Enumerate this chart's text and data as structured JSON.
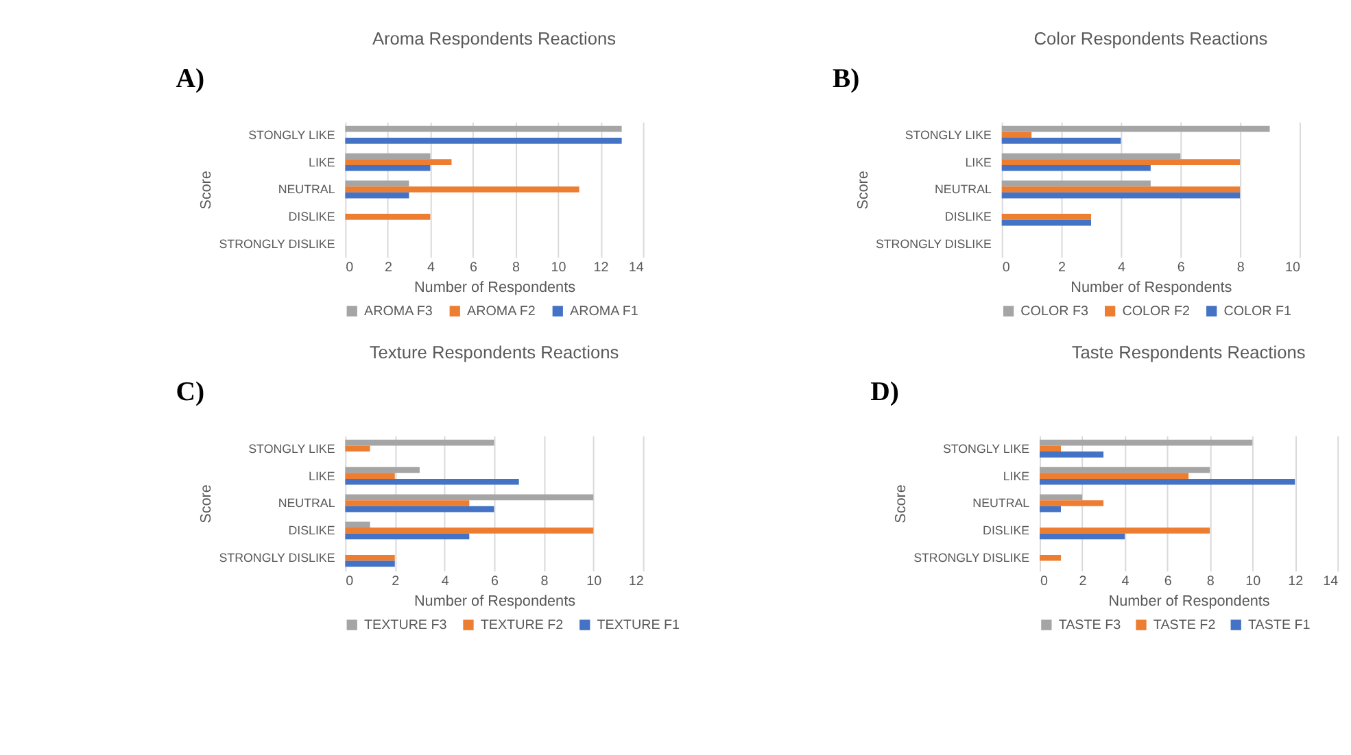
{
  "chart_data": [
    {
      "type": "bar",
      "orientation": "horizontal",
      "title": "Aroma Respondents Reactions",
      "xlabel": "Number of Respondents",
      "ylabel": "Score",
      "annotations": [
        "A)"
      ],
      "categories": [
        "STONGLY LIKE",
        "LIKE",
        "NEUTRAL",
        "DISLIKE",
        "STRONGLY DISLIKE"
      ],
      "xlim": [
        0,
        14
      ],
      "xticks": [
        0,
        2,
        4,
        6,
        8,
        10,
        12,
        14
      ],
      "grid": "x",
      "legend": "bottom",
      "series": [
        {
          "name": "AROMA F3",
          "color": "#a5a5a5",
          "values": [
            13,
            4,
            3,
            0,
            0
          ]
        },
        {
          "name": "AROMA F2",
          "color": "#ed7d31",
          "values": [
            0,
            5,
            11,
            4,
            0
          ]
        },
        {
          "name": "AROMA F1",
          "color": "#4472c4",
          "values": [
            13,
            4,
            3,
            0,
            0
          ]
        }
      ]
    },
    {
      "type": "bar",
      "orientation": "horizontal",
      "title": "Color Respondents Reactions",
      "xlabel": "Number of Respondents",
      "ylabel": "Score",
      "annotations": [
        "B)"
      ],
      "categories": [
        "STONGLY LIKE",
        "LIKE",
        "NEUTRAL",
        "DISLIKE",
        "STRONGLY DISLIKE"
      ],
      "xlim": [
        0,
        10
      ],
      "xticks": [
        0,
        2,
        4,
        6,
        8,
        10
      ],
      "grid": "x",
      "legend": "bottom",
      "series": [
        {
          "name": "COLOR F3",
          "color": "#a5a5a5",
          "values": [
            9,
            6,
            5,
            0,
            0
          ]
        },
        {
          "name": "COLOR F2",
          "color": "#ed7d31",
          "values": [
            1,
            8,
            8,
            3,
            0
          ]
        },
        {
          "name": "COLOR F1",
          "color": "#4472c4",
          "values": [
            4,
            5,
            8,
            3,
            0
          ]
        }
      ]
    },
    {
      "type": "bar",
      "orientation": "horizontal",
      "title": "Texture Respondents Reactions",
      "xlabel": "Number of Respondents",
      "ylabel": "Score",
      "annotations": [
        "C)"
      ],
      "categories": [
        "STONGLY LIKE",
        "LIKE",
        "NEUTRAL",
        "DISLIKE",
        "STRONGLY DISLIKE"
      ],
      "xlim": [
        0,
        12
      ],
      "xticks": [
        0,
        2,
        4,
        6,
        8,
        10,
        12
      ],
      "grid": "x",
      "legend": "bottom",
      "series": [
        {
          "name": "TEXTURE F3",
          "color": "#a5a5a5",
          "values": [
            6,
            3,
            10,
            1,
            0
          ]
        },
        {
          "name": "TEXTURE F2",
          "color": "#ed7d31",
          "values": [
            1,
            2,
            5,
            10,
            2
          ]
        },
        {
          "name": "TEXTURE F1",
          "color": "#4472c4",
          "values": [
            0,
            7,
            6,
            5,
            2
          ]
        }
      ]
    },
    {
      "type": "bar",
      "orientation": "horizontal",
      "title": "Taste Respondents Reactions",
      "xlabel": "Number of Respondents",
      "ylabel": "Score",
      "annotations": [
        "D)"
      ],
      "categories": [
        "STONGLY LIKE",
        "LIKE",
        "NEUTRAL",
        "DISLIKE",
        "STRONGLY DISLIKE"
      ],
      "xlim": [
        0,
        14
      ],
      "xticks": [
        0,
        2,
        4,
        6,
        8,
        10,
        12,
        14
      ],
      "grid": "x",
      "legend": "bottom",
      "series": [
        {
          "name": "TASTE F3",
          "color": "#a5a5a5",
          "values": [
            10,
            8,
            2,
            0,
            0
          ]
        },
        {
          "name": "TASTE F2",
          "color": "#ed7d31",
          "values": [
            1,
            7,
            3,
            8,
            1
          ]
        },
        {
          "name": "TASTE F1",
          "color": "#4472c4",
          "values": [
            3,
            12,
            1,
            4,
            0
          ]
        }
      ]
    }
  ]
}
